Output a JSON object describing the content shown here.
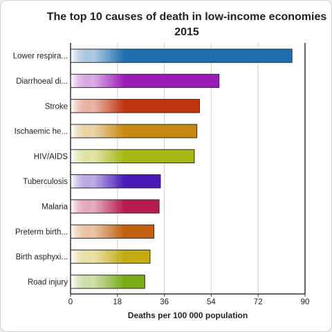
{
  "chart_data": {
    "type": "bar",
    "orientation": "horizontal",
    "title": "The top 10 causes of death in low-income economies 2015",
    "xlabel": "Deaths per 100 000 population",
    "ylabel": "",
    "xlim": [
      0,
      90
    ],
    "xticks": [
      "0",
      "18",
      "36",
      "54",
      "72",
      "90"
    ],
    "grid": true,
    "categories": [
      "Lower respira...",
      "Diarrhoeal di...",
      "Stroke",
      "Ischaemic he...",
      "HIV/AIDS",
      "Tuberculosis",
      "Malaria",
      "Preterm birth...",
      "Birth asphyxi...",
      "Road injury"
    ],
    "values": [
      85.0,
      57.0,
      49.5,
      48.5,
      47.5,
      34.5,
      34.0,
      32.0,
      30.5,
      28.5
    ],
    "colors": [
      "#1f6fae",
      "#9a1db8",
      "#c2360f",
      "#c68a12",
      "#a5b812",
      "#4a1bb8",
      "#b81b50",
      "#c2600f",
      "#c2ac12",
      "#78ab16"
    ]
  }
}
